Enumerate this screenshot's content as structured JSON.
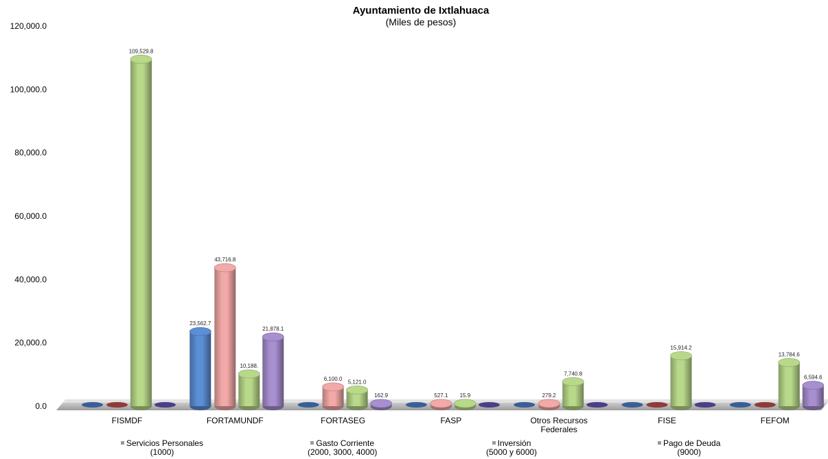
{
  "chart_data": {
    "type": "bar",
    "title": "Ayuntamiento de Ixtlahuaca",
    "subtitle": "(Miles de pesos)",
    "ylim": [
      0,
      120000
    ],
    "y_ticks": [
      "0.0",
      "20,000.0",
      "40,000.0",
      "60,000.0",
      "80,000.0",
      "100,000.0",
      "120,000.0"
    ],
    "categories": [
      [
        "FISMDF"
      ],
      [
        "FORTAMUNDF"
      ],
      [
        "FORTASEG"
      ],
      [
        "FASP"
      ],
      [
        "Otros Recursos",
        "Federales"
      ],
      [
        "FISE"
      ],
      [
        "FEFOM"
      ]
    ],
    "series": [
      {
        "name": "Servicios Personales",
        "name_line2": "(1000)",
        "color": "#5b8fd6",
        "values": [
          0,
          23562.7,
          0,
          0,
          0,
          0,
          0
        ],
        "labels": [
          null,
          "23,562.7",
          null,
          null,
          null,
          null,
          null
        ]
      },
      {
        "name": "Gasto Corriente",
        "name_line2": "(2000, 3000, 4000)",
        "color": "#f2a9a7",
        "values": [
          0,
          43716.8,
          6100.0,
          527.1,
          279.2,
          0,
          0
        ],
        "labels": [
          null,
          "43,716.8",
          "6,100.0",
          "527.1",
          "279.2",
          null,
          null
        ]
      },
      {
        "name": "Inversión",
        "name_line2": "(5000 y 6000)",
        "color": "#b9d98a",
        "values": [
          109529.8,
          10188,
          5121.0,
          15.9,
          7740.8,
          15914.2,
          13784.6
        ],
        "labels": [
          "109,529.8",
          "10,188.",
          "5,121.0",
          "15.9",
          "7,740.8",
          "15,914.2",
          "13,784.6"
        ]
      },
      {
        "name": "Pago de Deuda",
        "name_line2": "(9000)",
        "color": "#a88fd0",
        "values": [
          0,
          21878.1,
          162.9,
          0,
          0,
          0,
          6594.6
        ],
        "labels": [
          null,
          "21,878.1",
          "162.9",
          null,
          null,
          null,
          "6,594.6"
        ]
      }
    ],
    "grid": false,
    "legend_position": "bottom",
    "colors": {
      "zero_blue": "#3a5f97",
      "zero_red": "#8f3b37",
      "zero_purple": "#4a3f87",
      "floor": "#b3b3b3"
    }
  }
}
